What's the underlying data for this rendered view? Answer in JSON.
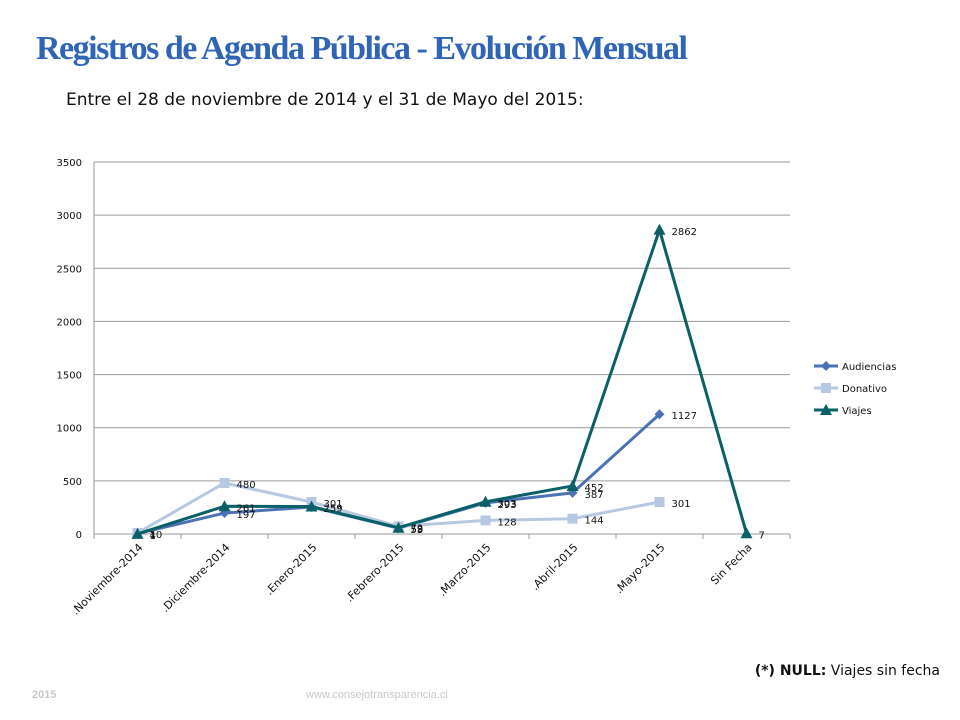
{
  "page": {
    "title": "Registros de Agenda Pública - Evolución Mensual",
    "subtitle": "Entre el 28 de noviembre de 2014 y el 31 de Mayo del 2015:",
    "note_bold": "(*) NULL:",
    "note_text": " Viajes sin fecha",
    "footer_year": "2015",
    "footer_url": "www.consejotransparencia.cl"
  },
  "chart_data": {
    "type": "line",
    "categories": [
      ".Noviembre-2014",
      ".Diciembre-2014",
      ".Enero-2015",
      ".Febrero-2015",
      ".Marzo-2015",
      ".Abril-2015",
      ".Mayo-2015",
      "Sin Fecha"
    ],
    "ylim": [
      0,
      3500
    ],
    "yticks": [
      0,
      500,
      1000,
      1500,
      2000,
      2500,
      3000,
      3500
    ],
    "grid": true,
    "legend": "right",
    "series": [
      {
        "name": "Audiencias",
        "color": "#4a72b5",
        "marker": "diamond",
        "values": [
          4,
          197,
          254,
          55,
          293,
          387,
          1127,
          null
        ]
      },
      {
        "name": "Donativo",
        "color": "#b7c9e2",
        "marker": "square",
        "values": [
          10,
          480,
          301,
          72,
          128,
          144,
          301,
          null
        ]
      },
      {
        "name": "Viajes",
        "color": "#0a6066",
        "marker": "triangle",
        "values": [
          1,
          261,
          259,
          59,
          303,
          452,
          2862,
          7
        ]
      }
    ]
  }
}
